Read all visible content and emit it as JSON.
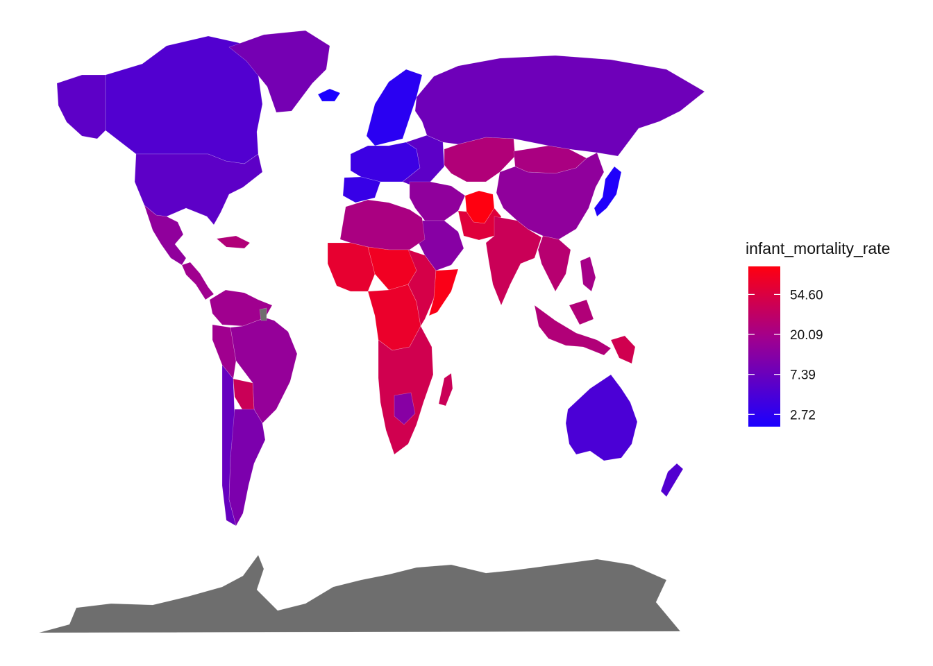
{
  "legend": {
    "title": "infant_mortality_rate",
    "scale": "log",
    "low_color": "#1a00ff",
    "mid_color": "#a0008f",
    "high_color": "#ff0010",
    "breaks": [
      {
        "label": "54.60",
        "value": 54.6
      },
      {
        "label": "20.09",
        "value": 20.09
      },
      {
        "label": "7.39",
        "value": 7.39
      },
      {
        "label": "2.72",
        "value": 2.72
      }
    ]
  },
  "missing_color": "#6e6e6e",
  "regions": [
    {
      "name": "Canada",
      "value": 5.0
    },
    {
      "name": "Alaska",
      "value": 6.0
    },
    {
      "name": "Greenland",
      "value": 9.0
    },
    {
      "name": "United States",
      "value": 6.0
    },
    {
      "name": "Mexico",
      "value": 14.0
    },
    {
      "name": "Central America",
      "value": 18.0
    },
    {
      "name": "Caribbean",
      "value": 25.0
    },
    {
      "name": "Northern South America",
      "value": 18.0
    },
    {
      "name": "Brazil",
      "value": 15.0
    },
    {
      "name": "Bolivia",
      "value": 40.0
    },
    {
      "name": "Peru",
      "value": 18.0
    },
    {
      "name": "Argentina",
      "value": 10.0
    },
    {
      "name": "Chile",
      "value": 7.0
    },
    {
      "name": "Iceland",
      "value": 2.0
    },
    {
      "name": "Scandinavia",
      "value": 2.6
    },
    {
      "name": "Western Europe",
      "value": 3.5
    },
    {
      "name": "Iberia",
      "value": 3.2
    },
    {
      "name": "Eastern Europe",
      "value": 6.0
    },
    {
      "name": "Russia",
      "value": 8.0
    },
    {
      "name": "Central Asia",
      "value": 25.0
    },
    {
      "name": "Middle East",
      "value": 14.0
    },
    {
      "name": "Arabia",
      "value": 12.0
    },
    {
      "name": "Afghanistan",
      "value": 110.0
    },
    {
      "name": "Pakistan",
      "value": 60.0
    },
    {
      "name": "India",
      "value": 40.0
    },
    {
      "name": "Mongolia",
      "value": 22.0
    },
    {
      "name": "China",
      "value": 14.0
    },
    {
      "name": "Japan",
      "value": 2.2
    },
    {
      "name": "Southeast Asia",
      "value": 28.0
    },
    {
      "name": "Indonesia",
      "value": 25.0
    },
    {
      "name": "Philippines",
      "value": 20.0
    },
    {
      "name": "Papua New Guinea",
      "value": 45.0
    },
    {
      "name": "North Africa",
      "value": 22.0
    },
    {
      "name": "West Africa",
      "value": 70.0
    },
    {
      "name": "Sahel",
      "value": 85.0
    },
    {
      "name": "Central Africa",
      "value": 75.0
    },
    {
      "name": "East Africa",
      "value": 50.0
    },
    {
      "name": "Somalia",
      "value": 100.0
    },
    {
      "name": "Southern Africa",
      "value": 45.0
    },
    {
      "name": "Botswana",
      "value": 12.0
    },
    {
      "name": "Madagascar",
      "value": 40.0
    },
    {
      "name": "Australia",
      "value": 4.5
    },
    {
      "name": "New Zealand",
      "value": 5.0
    },
    {
      "name": "French Guiana",
      "value": null
    },
    {
      "name": "Antarctica",
      "value": null
    }
  ]
}
